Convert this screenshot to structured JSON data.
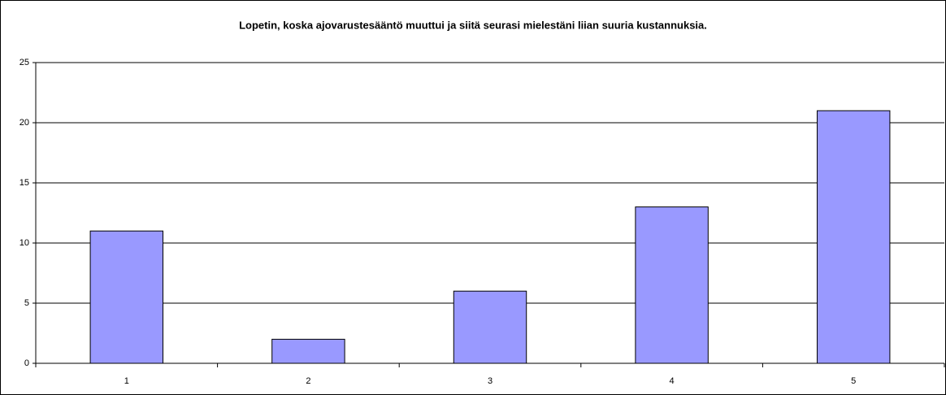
{
  "chart_data": {
    "type": "bar",
    "title": "Lopetin, koska ajovarustesääntö muuttui ja siitä seurasi mielestäni liian suuria kustannuksia.",
    "categories": [
      "1",
      "2",
      "3",
      "4",
      "5"
    ],
    "values": [
      11,
      2,
      6,
      13,
      21
    ],
    "color": "#9999ff",
    "ylim": [
      0,
      25
    ],
    "yticks": [
      0,
      5,
      10,
      15,
      20,
      25
    ],
    "grid": true
  }
}
